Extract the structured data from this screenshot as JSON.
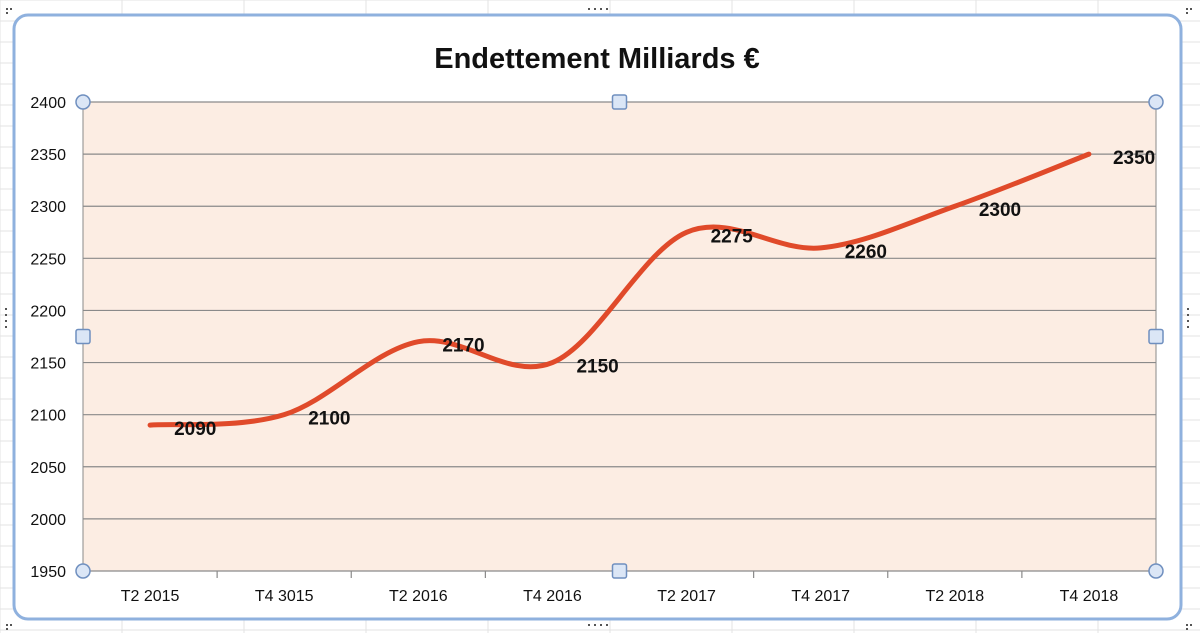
{
  "colors": {
    "frame_border": "#8fb1de",
    "plot_fill": "#fcede3",
    "gridline": "#8a8a8a",
    "series_line": "#e04a2a",
    "handle_fill": "#dbe6f6",
    "handle_stroke": "#6f8fbf",
    "spreadsheet_grid": "#e3e3e3"
  },
  "icons": {
    "handle_round": "resize-handle-circle-icon",
    "handle_square": "resize-handle-square-icon",
    "grip": "grip-dots-icon"
  },
  "chart_data": {
    "type": "line",
    "smooth": true,
    "title": "Endettement Milliards €",
    "xlabel": "",
    "ylabel": "",
    "categories": [
      "T2 2015",
      "T4 3015",
      "T2 2016",
      "T4 2016",
      "T2 2017",
      "T4 2017",
      "T2 2018",
      "T4 2018"
    ],
    "series": [
      {
        "values": [
          2090,
          2100,
          2170,
          2150,
          2275,
          2260,
          2300,
          2350
        ],
        "data_labels": [
          "2090",
          "2100",
          "2170",
          "2150",
          "2275",
          "2260",
          "2300",
          "2350"
        ]
      }
    ],
    "ylim": [
      1950,
      2400
    ],
    "yticks": [
      1950,
      2000,
      2050,
      2100,
      2150,
      2200,
      2250,
      2300,
      2350,
      2400
    ],
    "ytick_labels": [
      "1950",
      "2000",
      "2050",
      "2100",
      "2150",
      "2200",
      "2250",
      "2300",
      "2350",
      "2400"
    ],
    "grid": true,
    "legend": "none"
  }
}
